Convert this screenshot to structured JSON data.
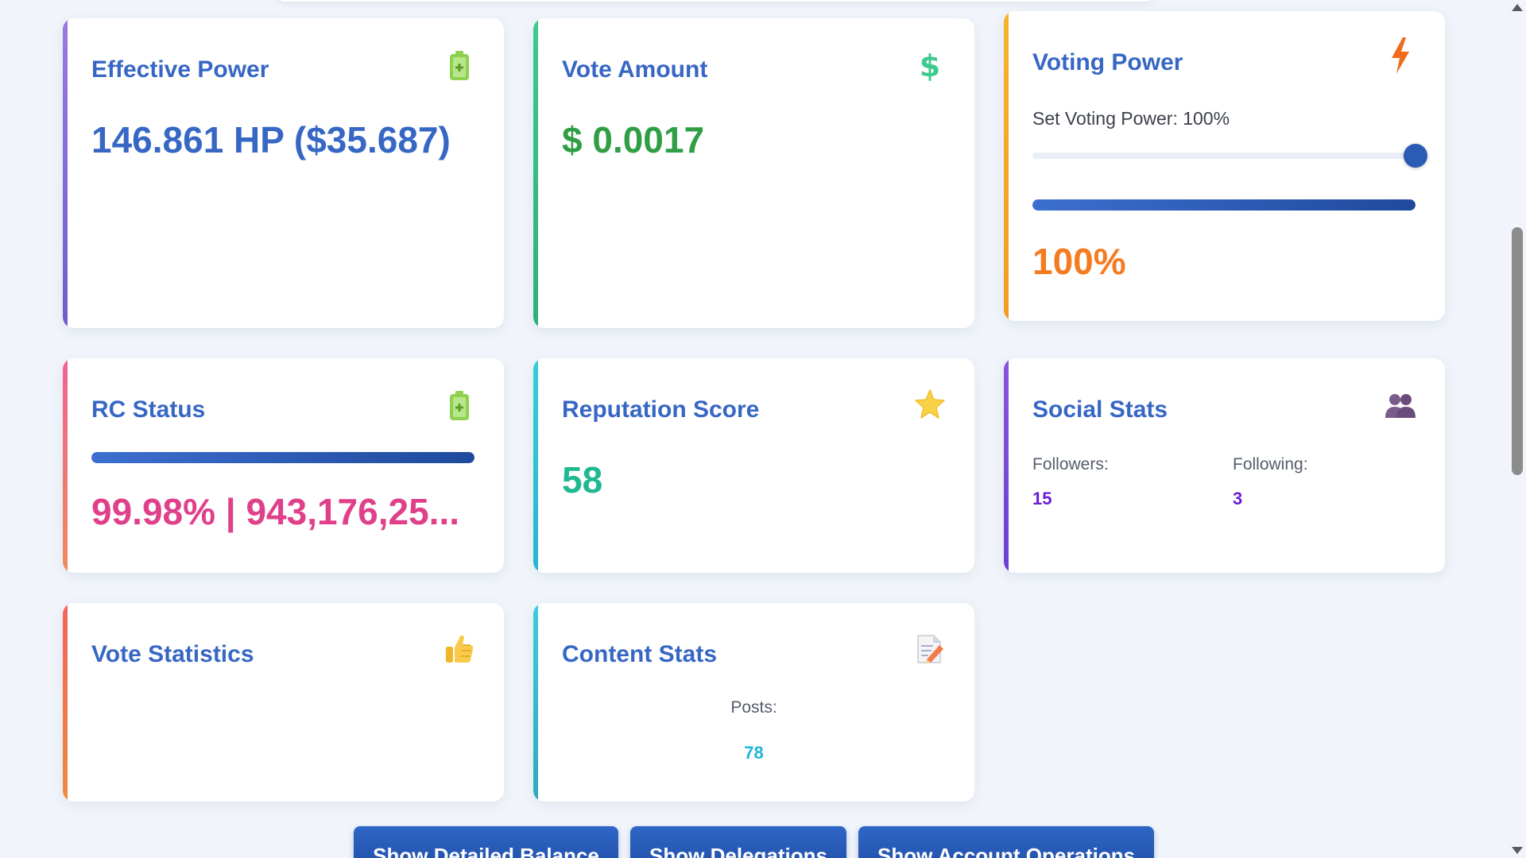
{
  "cards": {
    "effective_power": {
      "title": "Effective Power",
      "value": "146.861 HP ($35.687)",
      "icon": "battery-icon",
      "accent": "#8b6fd6"
    },
    "vote_amount": {
      "title": "Vote Amount",
      "value": "$ 0.0017",
      "icon": "dollar-icon",
      "accent": "#3bbf8a"
    },
    "voting_power": {
      "title": "Voting Power",
      "slider_label": "Set Voting Power: 100%",
      "slider_level": 1.0,
      "progress_level": 1.0,
      "value": "100%",
      "icon": "lightning-icon",
      "accent": "#f5a623"
    },
    "rc_status": {
      "title": "RC Status",
      "progress_level": 0.9998,
      "value": "99.98% | 943,176,25...",
      "icon": "battery-icon",
      "accent": "#ef5b8c"
    },
    "reputation": {
      "title": "Reputation Score",
      "value": "58",
      "icon": "star-icon",
      "accent": "#2fc6c6"
    },
    "social_stats": {
      "title": "Social Stats",
      "followers_label": "Followers:",
      "followers_value": "15",
      "following_label": "Following:",
      "following_value": "3",
      "icon": "people-icon",
      "accent": "#7b4fd9"
    },
    "vote_statistics": {
      "title": "Vote Statistics",
      "icon": "thumbs-up-icon",
      "accent": "#ef6a4a"
    },
    "content_stats": {
      "title": "Content Stats",
      "posts_label": "Posts:",
      "posts_value": "78",
      "icon": "memo-icon",
      "accent": "#35b9d6"
    }
  },
  "buttons": {
    "detailed_balance": "Show Detailed Balance",
    "delegations": "Show Delegations",
    "account_operations": "Show Account Operations"
  },
  "colors": {
    "title": "#3767c4",
    "value_blue": "#3767c4",
    "value_green": "#2f9e44",
    "value_orange": "#f47b20",
    "value_pink": "#e0408a",
    "value_teal": "#20b890",
    "value_purple": "#6a1bd6",
    "value_cyan": "#1fb5d8"
  }
}
